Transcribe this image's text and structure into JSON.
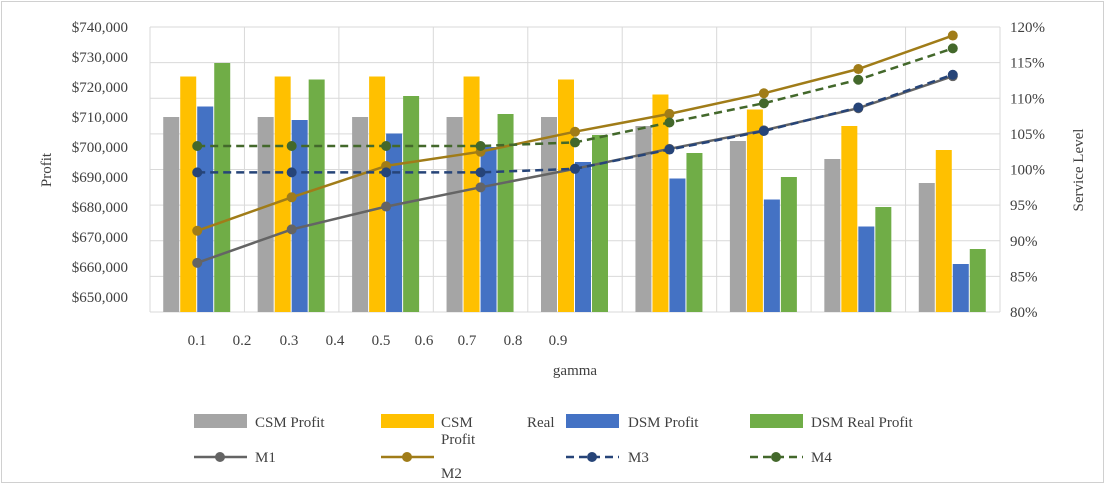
{
  "chart_data": {
    "type": "bar",
    "xlabel": "gamma",
    "ylabel": "Profit",
    "y2label": "Service  Level",
    "ylim": [
      645000,
      740000
    ],
    "y2lim": [
      80,
      120
    ],
    "y_ticks": [
      "$650,000",
      "$660,000",
      "$670,000",
      "$680,000",
      "$690,000",
      "$700,000",
      "$710,000",
      "$720,000",
      "$730,000",
      "$740,000"
    ],
    "y2_ticks": [
      "80%",
      "85%",
      "90%",
      "95%",
      "100%",
      "105%",
      "110%",
      "115%",
      "120%"
    ],
    "x_ticks": [
      "0.1",
      "0.2",
      "0.3",
      "0.4",
      "0.5",
      "0.6",
      "0.7",
      "0.8",
      "0.9"
    ],
    "bar_series": [
      {
        "name": "CSM Profit",
        "color": "#a5a5a5",
        "values": [
          710000,
          710000,
          710000,
          710000,
          710000,
          707000,
          702000,
          696000,
          688000
        ]
      },
      {
        "name": "CSM Real Profit",
        "color": "#ffc000",
        "values": [
          723500,
          723500,
          723500,
          723500,
          722500,
          717500,
          712500,
          707000,
          699000
        ]
      },
      {
        "name": "DSM Profit",
        "color": "#4472c4",
        "values": [
          713500,
          709000,
          704500,
          700000,
          695000,
          689500,
          682500,
          673500,
          661000
        ]
      },
      {
        "name": "DSM Real Profit",
        "color": "#70ad47",
        "values": [
          728000,
          722500,
          717000,
          711000,
          704000,
          698000,
          690000,
          680000,
          666000
        ]
      }
    ],
    "line_series": [
      {
        "name": "M1",
        "color": "#646464",
        "dash": "solid",
        "values": [
          86.9,
          91.6,
          94.8,
          97.5,
          100.1,
          102.9,
          105.5,
          108.6,
          113.1
        ]
      },
      {
        "name": "M2",
        "color": "#a07c18",
        "dash": "solid",
        "values": [
          91.4,
          96.1,
          100.5,
          102.5,
          105.3,
          107.8,
          110.7,
          114.1,
          118.8
        ]
      },
      {
        "name": "M3",
        "color": "#264478",
        "dash": "dashed",
        "values": [
          99.6,
          99.6,
          99.6,
          99.6,
          100.1,
          102.8,
          105.4,
          108.7,
          113.3
        ]
      },
      {
        "name": "M4",
        "color": "#43682b",
        "dash": "dashed",
        "values": [
          103.3,
          103.3,
          103.3,
          103.3,
          103.8,
          106.6,
          109.3,
          112.6,
          117.0
        ]
      }
    ],
    "legend": {
      "position": "bottom",
      "entries": [
        {
          "kind": "bar",
          "series": "CSM Profit",
          "lines": [
            "CSM  Profit"
          ]
        },
        {
          "kind": "bar",
          "series": "CSM Real Profit",
          "lines": [
            "CSM",
            "Profit"
          ],
          "extra": "Real"
        },
        {
          "kind": "bar",
          "series": "DSM Profit",
          "lines": [
            "DSM  Profit"
          ]
        },
        {
          "kind": "bar",
          "series": "DSM Real Profit",
          "lines": [
            "DSM  Real Profit"
          ]
        },
        {
          "kind": "line",
          "series": "M1",
          "lines": [
            "M1"
          ]
        },
        {
          "kind": "line",
          "series": "M2",
          "lines": [
            "",
            "M2"
          ]
        },
        {
          "kind": "line",
          "series": "M3",
          "lines": [
            "M3"
          ]
        },
        {
          "kind": "line",
          "series": "M4",
          "lines": [
            "M4"
          ]
        }
      ]
    },
    "grid": true
  }
}
